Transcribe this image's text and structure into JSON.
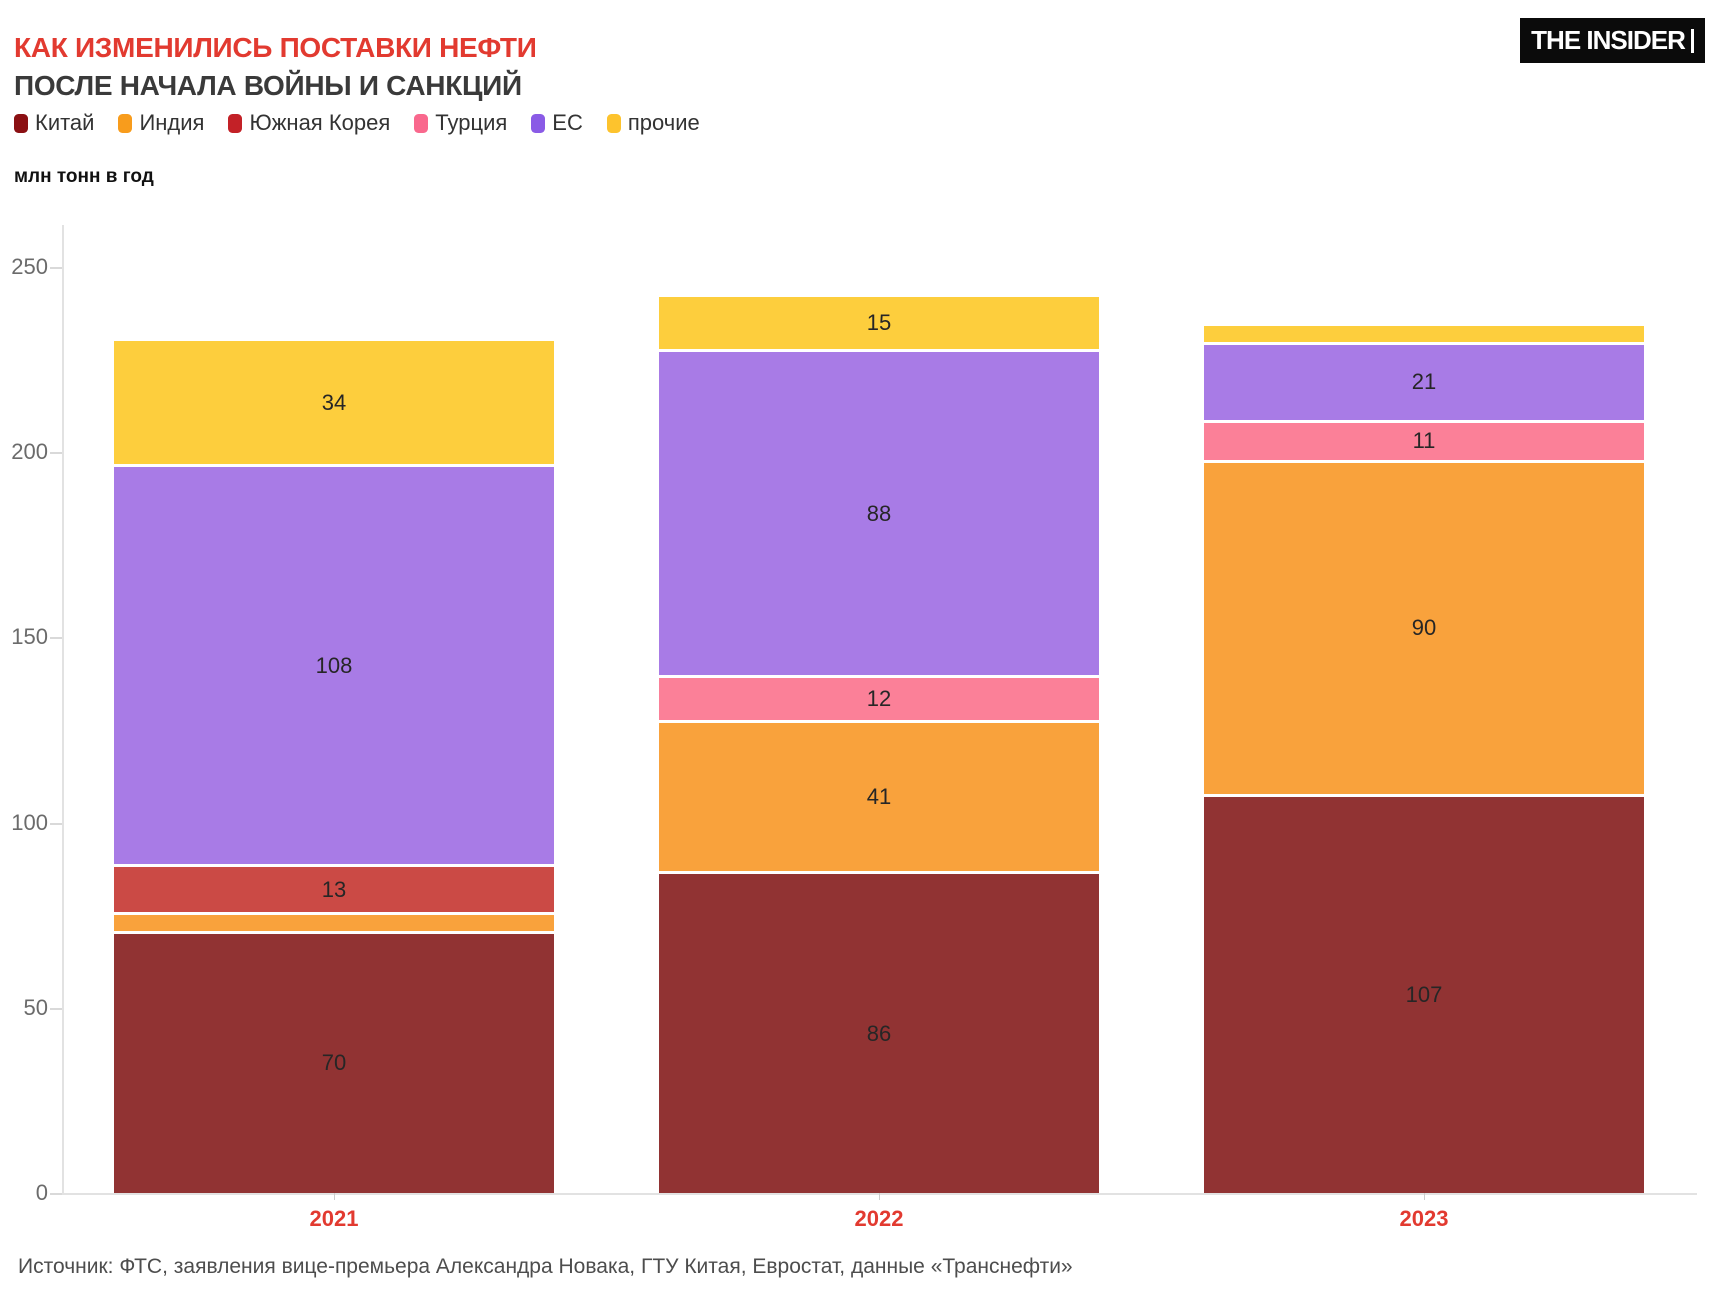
{
  "header": {
    "title_line1": "КАК ИЗМЕНИЛИСЬ ПОСТАВКИ НЕФТИ",
    "title_line2": "ПОСЛЕ НАЧАЛА ВОЙНЫ И САНКЦИЙ",
    "title_accent_color": "#e23a30",
    "title_secondary_color": "#3a3a3a",
    "logo_text": "THE INSIDER"
  },
  "source": "Источник: ФТС, заявления вице-премьера Александра Новака, ГТУ Китая, Евростат, данные «Транснефти»",
  "chart_data": {
    "type": "bar",
    "stacked": true,
    "title": "КАК ИЗМЕНИЛИСЬ ПОСТАВКИ НЕФТИ ПОСЛЕ НАЧАЛА ВОЙНЫ И САНКЦИЙ",
    "ylabel": "млн тонн в год",
    "categories": [
      "2021",
      "2022",
      "2023"
    ],
    "category_label_color": "#e23a30",
    "series": [
      {
        "name": "Китай",
        "slug": "china",
        "color": "#8b1013",
        "bar_color": "#913333",
        "values": [
          70,
          86,
          107
        ]
      },
      {
        "name": "Индия",
        "slug": "india",
        "color": "#f89c1c",
        "bar_color": "#f9a23c",
        "values": [
          5,
          41,
          90
        ]
      },
      {
        "name": "Южная Корея",
        "slug": "south-korea",
        "color": "#c32127",
        "bar_color": "#cb4a45",
        "values": [
          13,
          0,
          0
        ]
      },
      {
        "name": "Турция",
        "slug": "turkey",
        "color": "#f9688d",
        "bar_color": "#fb8098",
        "values": [
          0,
          12,
          11
        ]
      },
      {
        "name": "ЕС",
        "slug": "eu",
        "color": "#8a5be6",
        "bar_color": "#a87be6",
        "values": [
          108,
          88,
          21
        ]
      },
      {
        "name": "прочие",
        "slug": "others",
        "color": "#fdc32d",
        "bar_color": "#fdce3d",
        "values": [
          34,
          15,
          5
        ]
      }
    ],
    "yticks": [
      0,
      50,
      100,
      150,
      200,
      250
    ],
    "ylim": [
      0,
      250
    ],
    "grid": false,
    "legend_position": "top",
    "value_labels_visible_min": 10
  }
}
